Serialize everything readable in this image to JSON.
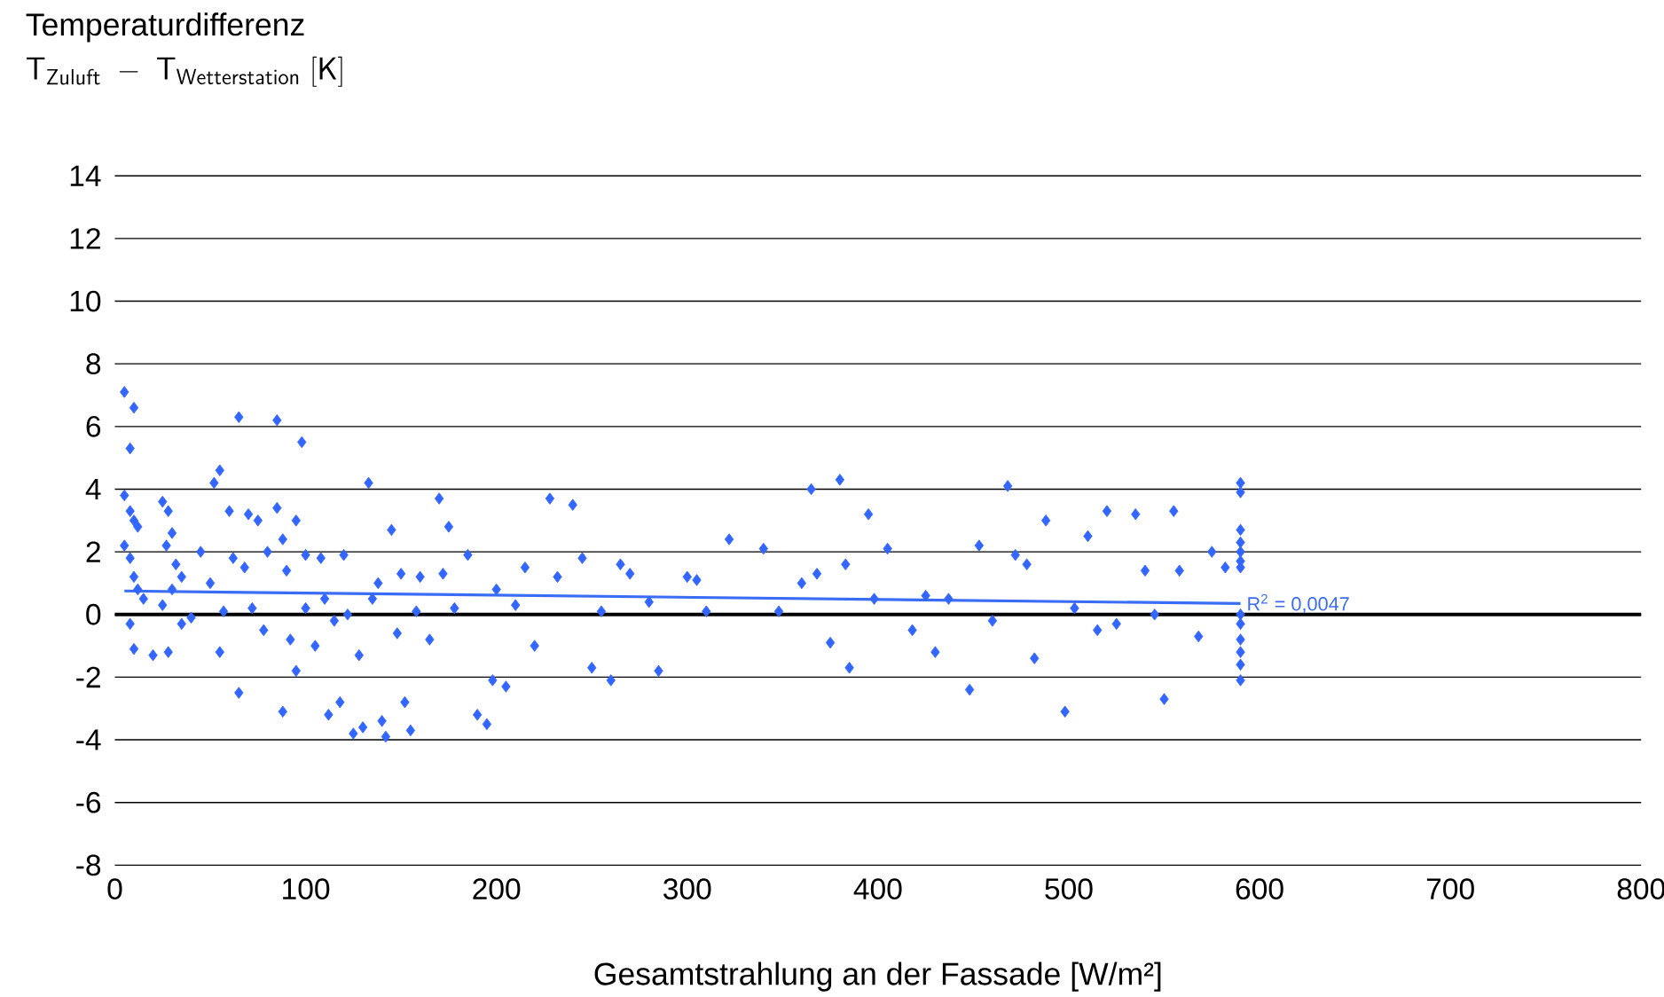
{
  "chart_data": {
    "type": "scatter",
    "title": "Temperaturdifferenz",
    "ylabel": "\\mathsf{T_{Zuluft}\\ -\\ T_{Wetterstation}\\ [K]}",
    "xlabel": "Gesamtstrahlung an der Fassade [W/m²]",
    "xlim": [
      0,
      800
    ],
    "xticks": [
      0,
      100,
      200,
      300,
      400,
      500,
      600,
      700,
      800
    ],
    "ylim": [
      -8,
      14
    ],
    "yticks": [
      -8,
      -6,
      -4,
      -2,
      0,
      2,
      4,
      6,
      8,
      10,
      12,
      14
    ],
    "grid": "y",
    "ref_lines": [
      {
        "axis": "y",
        "value": 0,
        "color": "#000000"
      }
    ],
    "annotations": [
      {
        "text": "R$^{2}$ = 0,0047",
        "x": 590,
        "y": 0.35
      }
    ],
    "series": [
      {
        "marker": "diamond",
        "color": "#3366ff",
        "x": [
          5,
          10,
          8,
          5,
          8,
          10,
          12,
          5,
          8,
          10,
          12,
          15,
          8,
          10,
          20,
          25,
          28,
          30,
          27,
          32,
          35,
          30,
          25,
          40,
          35,
          28,
          45,
          50,
          55,
          52,
          60,
          57,
          55,
          65,
          62,
          68,
          70,
          75,
          72,
          65,
          80,
          85,
          85,
          88,
          90,
          95,
          98,
          100,
          100,
          92,
          88,
          95,
          78,
          105,
          108,
          110,
          112,
          115,
          118,
          120,
          122,
          125,
          128,
          130,
          133,
          135,
          138,
          140,
          142,
          145,
          148,
          150,
          152,
          155,
          158,
          160,
          165,
          170,
          172,
          175,
          178,
          185,
          190,
          195,
          198,
          200,
          205,
          210,
          215,
          220,
          228,
          232,
          240,
          245,
          250,
          255,
          260,
          265,
          270,
          280,
          285,
          300,
          305,
          310,
          322,
          340,
          348,
          360,
          365,
          368,
          375,
          380,
          383,
          385,
          395,
          398,
          405,
          418,
          425,
          430,
          437,
          448,
          453,
          460,
          468,
          472,
          478,
          482,
          488,
          498,
          503,
          510,
          515,
          520,
          525,
          535,
          540,
          545,
          550,
          555,
          558,
          568,
          575,
          582,
          590,
          590,
          590,
          590,
          590,
          590,
          590,
          590,
          590,
          590,
          590,
          590,
          590
        ],
        "values": [
          7.1,
          6.6,
          5.3,
          3.8,
          3.3,
          3.0,
          2.8,
          2.2,
          1.8,
          1.2,
          0.8,
          0.5,
          -0.3,
          -1.1,
          -1.3,
          3.6,
          3.3,
          2.6,
          2.2,
          1.6,
          1.2,
          0.8,
          0.3,
          -0.1,
          -0.3,
          -1.2,
          2.0,
          1.0,
          4.6,
          4.2,
          3.3,
          0.1,
          -1.2,
          6.3,
          1.8,
          1.5,
          3.2,
          3.0,
          0.2,
          -2.5,
          2.0,
          6.2,
          3.4,
          2.4,
          1.4,
          3.0,
          5.5,
          1.9,
          0.2,
          -0.8,
          -3.1,
          -1.8,
          -0.5,
          -1.0,
          1.8,
          0.5,
          -3.2,
          -0.2,
          -2.8,
          1.9,
          0.0,
          -3.8,
          -1.3,
          -3.6,
          4.2,
          0.5,
          1.0,
          -3.4,
          -3.9,
          2.7,
          -0.6,
          1.3,
          -2.8,
          -3.7,
          0.1,
          1.2,
          -0.8,
          3.7,
          1.3,
          2.8,
          0.2,
          1.9,
          -3.2,
          -3.5,
          -2.1,
          0.8,
          -2.3,
          0.3,
          1.5,
          -1.0,
          3.7,
          1.2,
          3.5,
          1.8,
          -1.7,
          0.1,
          -2.1,
          1.6,
          1.3,
          0.4,
          -1.8,
          1.2,
          1.1,
          0.1,
          2.4,
          2.1,
          0.1,
          1.0,
          4.0,
          1.3,
          -0.9,
          4.3,
          1.6,
          -1.7,
          3.2,
          0.5,
          2.1,
          -0.5,
          0.6,
          -1.2,
          0.5,
          -2.4,
          2.2,
          -0.2,
          4.1,
          1.9,
          1.6,
          -1.4,
          3.0,
          -3.1,
          0.2,
          2.5,
          -0.5,
          3.3,
          -0.3,
          3.2,
          1.4,
          0.0,
          -2.7,
          3.3,
          1.4,
          -0.7,
          2.0,
          1.5,
          4.2,
          3.9,
          2.7,
          2.3,
          2.0,
          1.7,
          1.5,
          0.0,
          -0.3,
          -0.8,
          -1.2,
          -1.6,
          -2.1
        ]
      },
      {
        "type": "line",
        "color": "#3b6cf5",
        "x": [
          5,
          590
        ],
        "values": [
          0.75,
          0.35
        ]
      }
    ]
  }
}
